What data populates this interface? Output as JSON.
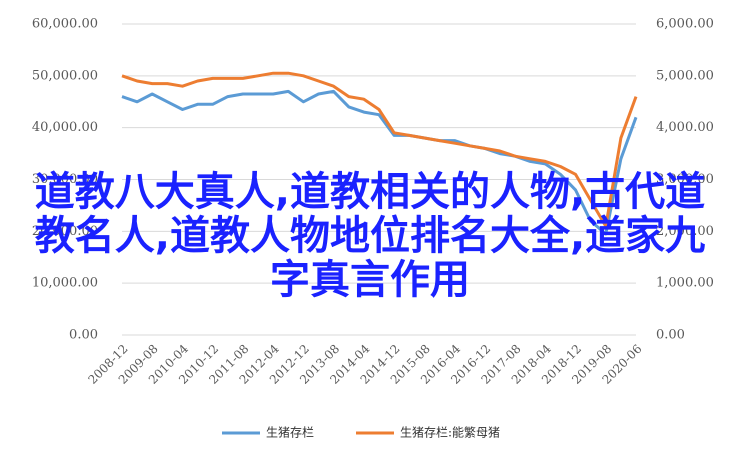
{
  "chart_data": {
    "type": "line",
    "title": "道教八大真人,道教相关的人物,古代道教名人,道教人物地位排名大全,道家九字真言作用",
    "categories": [
      "2008-12",
      null,
      "2009-08",
      null,
      "2010-04",
      null,
      "2010-12",
      null,
      "2011-08",
      null,
      "2012-04",
      null,
      "2012-12",
      null,
      "2013-08",
      null,
      "2014-04",
      null,
      "2014-12",
      null,
      "2015-08",
      null,
      "2016-04",
      null,
      "2016-12",
      null,
      "2017-08",
      null,
      "2018-04",
      null,
      "2018-12",
      null,
      "2019-08",
      null,
      "2020-06"
    ],
    "series": [
      {
        "name": "生猪存栏",
        "color": "#5b9bd5",
        "values": [
          46000,
          45000,
          46500,
          45000,
          43500,
          44500,
          44500,
          46000,
          46500,
          46500,
          46500,
          47000,
          45000,
          46500,
          47000,
          44000,
          43000,
          42500,
          38500,
          38500,
          38000,
          37500,
          37500,
          36500,
          36000,
          35000,
          34500,
          33500,
          33000,
          31000,
          28000,
          22000,
          19500,
          34000,
          42000
        ]
      },
      {
        "name": "生猪存栏:能繁母猪",
        "color": "#ed7d31",
        "axis": "y2",
        "values": [
          5000,
          4900,
          4850,
          4850,
          4800,
          4900,
          4950,
          4950,
          4950,
          5000,
          5050,
          5050,
          5000,
          4900,
          4800,
          4600,
          4550,
          4350,
          3900,
          3850,
          3800,
          3750,
          3700,
          3650,
          3600,
          3550,
          3450,
          3400,
          3350,
          3250,
          3100,
          2600,
          2100,
          3800,
          4600
        ]
      }
    ],
    "ylim": [
      0,
      60000
    ],
    "yticks": [
      {
        "value": 0,
        "label": "0.00"
      },
      {
        "value": 10000,
        "label": "10,000.00"
      },
      {
        "value": 20000,
        "label": "20,000.00"
      },
      {
        "value": 30000,
        "label": "30,000.00"
      },
      {
        "value": 40000,
        "label": "40,000.00"
      },
      {
        "value": 50000,
        "label": "50,000.00"
      },
      {
        "value": 60000,
        "label": "60,000.00"
      }
    ],
    "y2lim": [
      0,
      6000
    ],
    "y2ticks": [
      {
        "value": 0,
        "label": "0.00"
      },
      {
        "value": 1000,
        "label": "1,000.00"
      },
      {
        "value": 2000,
        "label": "2,000.00"
      },
      {
        "value": 3000,
        "label": "3,000.00"
      },
      {
        "value": 4000,
        "label": "4,000.00"
      },
      {
        "value": 5000,
        "label": "5,000.00"
      },
      {
        "value": 6000,
        "label": "6,000.00"
      }
    ],
    "legend": "bottom"
  }
}
